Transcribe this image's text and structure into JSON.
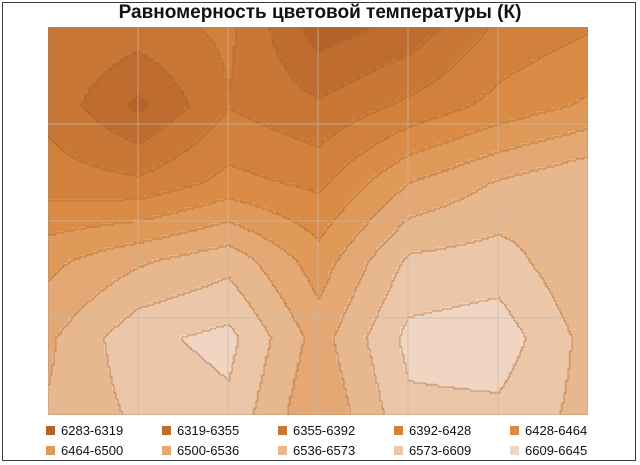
{
  "chart_data": {
    "type": "heatmap",
    "title": "Равномерность цветовой температуры (К)",
    "xlabel": "",
    "ylabel": "",
    "grid": true,
    "legend_position": "bottom",
    "legend": [
      {
        "label": "6283-6319",
        "color": "#b4612a"
      },
      {
        "label": "6319-6355",
        "color": "#bf6c30"
      },
      {
        "label": "6355-6392",
        "color": "#c97736"
      },
      {
        "label": "6392-6428",
        "color": "#d2813d"
      },
      {
        "label": "6428-6464",
        "color": "#da8c47"
      },
      {
        "label": "6464-6500",
        "color": "#df9a5a"
      },
      {
        "label": "6500-6536",
        "color": "#e3a874"
      },
      {
        "label": "6536-6573",
        "color": "#e7b78e"
      },
      {
        "label": "6573-6609",
        "color": "#ebc6a8"
      },
      {
        "label": "6609-6645",
        "color": "#efd5c2"
      }
    ],
    "values": [
      [
        6392,
        6375,
        6400,
        6300,
        6330,
        6400,
        6425
      ],
      [
        6380,
        6310,
        6390,
        6360,
        6400,
        6440,
        6470
      ],
      [
        6410,
        6400,
        6440,
        6420,
        6500,
        6540,
        6570
      ],
      [
        6490,
        6530,
        6560,
        6480,
        6580,
        6590,
        6540
      ],
      [
        6530,
        6600,
        6620,
        6520,
        6620,
        6630,
        6560
      ],
      [
        6540,
        6580,
        6600,
        6500,
        6600,
        6600,
        6560
      ]
    ]
  }
}
